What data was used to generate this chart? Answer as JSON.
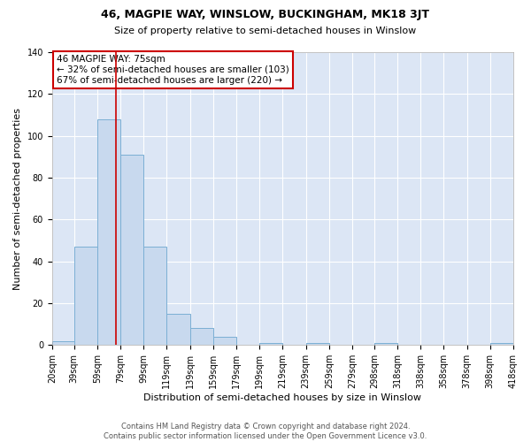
{
  "title": "46, MAGPIE WAY, WINSLOW, BUCKINGHAM, MK18 3JT",
  "subtitle": "Size of property relative to semi-detached houses in Winslow",
  "xlabel": "Distribution of semi-detached houses by size in Winslow",
  "ylabel": "Number of semi-detached properties",
  "footnote1": "Contains HM Land Registry data © Crown copyright and database right 2024.",
  "footnote2": "Contains public sector information licensed under the Open Government Licence v3.0.",
  "annotation_line1": "46 MAGPIE WAY: 75sqm",
  "annotation_line2": "← 32% of semi-detached houses are smaller (103)",
  "annotation_line3": "67% of semi-detached houses are larger (220) →",
  "bar_color": "#c8d9ee",
  "bar_edge_color": "#7bafd4",
  "vline_color": "#cc0000",
  "vline_x": 75,
  "bin_edges": [
    20,
    39,
    59,
    79,
    99,
    119,
    139,
    159,
    179,
    199,
    219,
    239,
    259,
    279,
    298,
    318,
    338,
    358,
    378,
    398,
    418
  ],
  "bin_counts": [
    2,
    47,
    108,
    91,
    47,
    15,
    8,
    4,
    0,
    1,
    0,
    1,
    0,
    0,
    1,
    0,
    0,
    0,
    0,
    1
  ],
  "ylim": [
    0,
    140
  ],
  "yticks": [
    0,
    20,
    40,
    60,
    80,
    100,
    120,
    140
  ],
  "fig_bg_color": "#ffffff",
  "plot_bg_color": "#dce6f5",
  "annotation_box_color": "white",
  "annotation_box_edge": "#cc0000",
  "title_fontsize": 9,
  "subtitle_fontsize": 8,
  "tick_label_fontsize": 7,
  "ylabel_fontsize": 8,
  "xlabel_fontsize": 8,
  "footnote_fontsize": 6,
  "annotation_fontsize": 7.5
}
